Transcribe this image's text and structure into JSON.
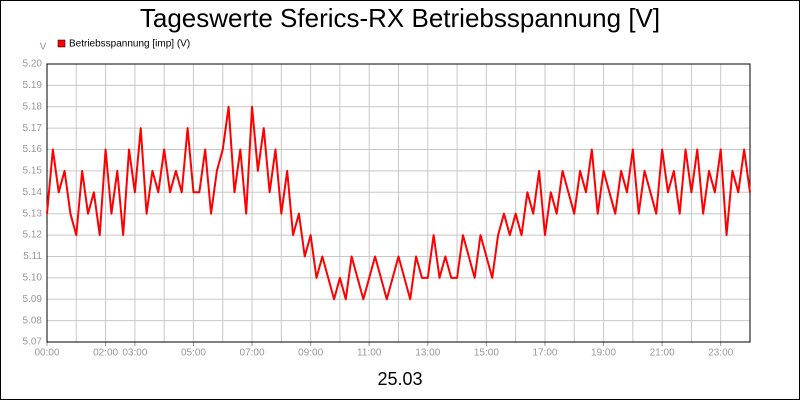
{
  "chart_data": {
    "type": "line",
    "title": "Tageswerte Sferics-RX Betriebsspannung [V]",
    "y_label": "V",
    "x_label": "25.03",
    "series": [
      {
        "name": "Betriebsspannung [imp] (V)",
        "color": "#ff0000",
        "values": [
          5.13,
          5.16,
          5.14,
          5.15,
          5.13,
          5.12,
          5.15,
          5.13,
          5.14,
          5.12,
          5.16,
          5.13,
          5.15,
          5.12,
          5.16,
          5.14,
          5.17,
          5.13,
          5.15,
          5.14,
          5.16,
          5.14,
          5.15,
          5.14,
          5.17,
          5.14,
          5.14,
          5.16,
          5.13,
          5.15,
          5.16,
          5.18,
          5.14,
          5.16,
          5.13,
          5.18,
          5.15,
          5.17,
          5.14,
          5.16,
          5.13,
          5.15,
          5.12,
          5.13,
          5.11,
          5.12,
          5.1,
          5.11,
          5.1,
          5.09,
          5.1,
          5.09,
          5.11,
          5.1,
          5.09,
          5.1,
          5.11,
          5.1,
          5.09,
          5.1,
          5.11,
          5.1,
          5.09,
          5.11,
          5.1,
          5.1,
          5.12,
          5.1,
          5.11,
          5.1,
          5.1,
          5.12,
          5.11,
          5.1,
          5.12,
          5.11,
          5.1,
          5.12,
          5.13,
          5.12,
          5.13,
          5.12,
          5.14,
          5.13,
          5.15,
          5.12,
          5.14,
          5.13,
          5.15,
          5.14,
          5.13,
          5.15,
          5.14,
          5.16,
          5.13,
          5.15,
          5.14,
          5.13,
          5.15,
          5.14,
          5.16,
          5.13,
          5.15,
          5.14,
          5.13,
          5.16,
          5.14,
          5.15,
          5.13,
          5.16,
          5.14,
          5.16,
          5.13,
          5.15,
          5.14,
          5.16,
          5.12,
          5.15,
          5.14,
          5.16,
          5.14
        ]
      }
    ],
    "x": [
      0,
      0.2,
      0.4,
      0.6,
      0.8,
      1,
      1.2,
      1.4,
      1.6,
      1.8,
      2,
      2.2,
      2.4,
      2.6,
      2.8,
      3,
      3.2,
      3.4,
      3.6,
      3.8,
      4,
      4.2,
      4.4,
      4.6,
      4.8,
      5,
      5.2,
      5.4,
      5.6,
      5.8,
      6,
      6.2,
      6.4,
      6.6,
      6.8,
      7,
      7.2,
      7.4,
      7.6,
      7.8,
      8,
      8.2,
      8.4,
      8.6,
      8.8,
      9,
      9.2,
      9.4,
      9.6,
      9.8,
      10,
      10.2,
      10.4,
      10.6,
      10.8,
      11,
      11.2,
      11.4,
      11.6,
      11.8,
      12,
      12.2,
      12.4,
      12.6,
      12.8,
      13,
      13.2,
      13.4,
      13.6,
      13.8,
      14,
      14.2,
      14.4,
      14.6,
      14.8,
      15,
      15.2,
      15.4,
      15.6,
      15.8,
      16,
      16.2,
      16.4,
      16.6,
      16.8,
      17,
      17.2,
      17.4,
      17.6,
      17.8,
      18,
      18.2,
      18.4,
      18.6,
      18.8,
      19,
      19.2,
      19.4,
      19.6,
      19.8,
      20,
      20.2,
      20.4,
      20.6,
      20.8,
      21,
      21.2,
      21.4,
      21.6,
      21.8,
      22,
      22.2,
      22.4,
      22.6,
      22.8,
      23,
      23.2,
      23.4,
      23.6,
      23.8,
      24
    ],
    "xlim": [
      0,
      24
    ],
    "xticks": [
      {
        "value": 0,
        "label": "00:00"
      },
      {
        "value": 2,
        "label": "02:00"
      },
      {
        "value": 3,
        "label": "03:00"
      },
      {
        "value": 5,
        "label": "05:00"
      },
      {
        "value": 7,
        "label": "07:00"
      },
      {
        "value": 9,
        "label": "09:00"
      },
      {
        "value": 11,
        "label": "11:00"
      },
      {
        "value": 13,
        "label": "13:00"
      },
      {
        "value": 15,
        "label": "15:00"
      },
      {
        "value": 17,
        "label": "17:00"
      },
      {
        "value": 19,
        "label": "19:00"
      },
      {
        "value": 21,
        "label": "21:00"
      },
      {
        "value": 23,
        "label": "23:00"
      }
    ],
    "ylim": [
      5.07,
      5.2
    ],
    "yticks": [
      5.07,
      5.08,
      5.09,
      {
        "value": 5.1,
        "label": "5.10"
      },
      5.11,
      5.12,
      5.13,
      5.14,
      5.15,
      5.16,
      5.17,
      5.18,
      5.19,
      {
        "value": 5.2,
        "label": "5.20"
      }
    ],
    "grid": true,
    "legend": "top-left"
  }
}
